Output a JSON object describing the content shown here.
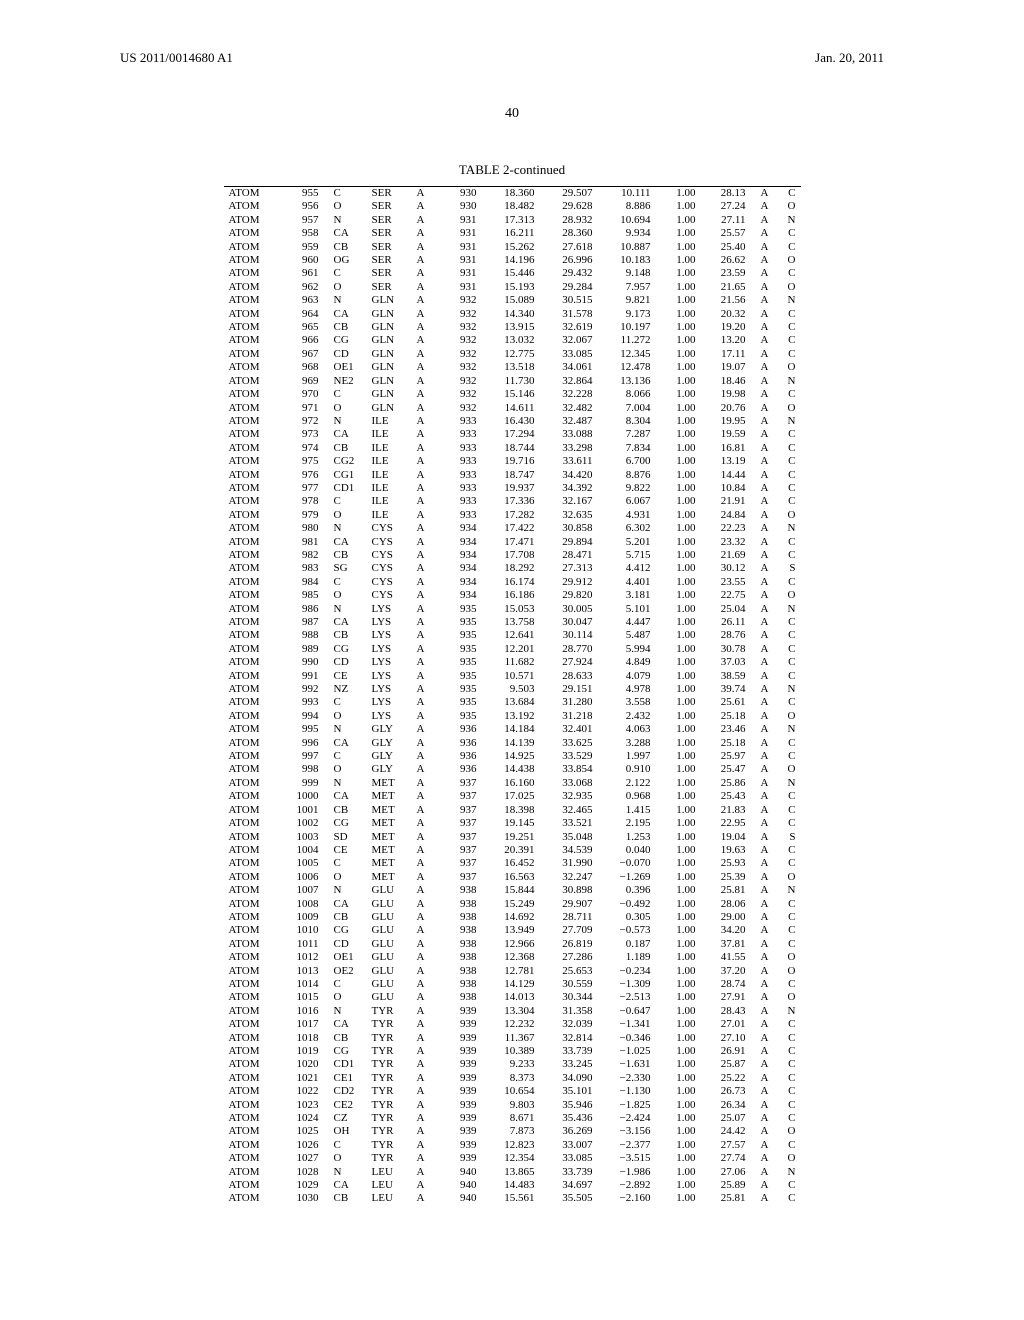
{
  "header": {
    "publication_number": "US 2011/0014680 A1",
    "publication_date": "Jan. 20, 2011"
  },
  "page_number": "40",
  "table": {
    "caption": "TABLE 2-continued",
    "font_size": 11,
    "rows": [
      [
        "ATOM",
        "955",
        "C",
        "SER",
        "A",
        "930",
        "18.360",
        "29.507",
        "10.111",
        "1.00",
        "28.13",
        "A",
        "C"
      ],
      [
        "ATOM",
        "956",
        "O",
        "SER",
        "A",
        "930",
        "18.482",
        "29.628",
        "8.886",
        "1.00",
        "27.24",
        "A",
        "O"
      ],
      [
        "ATOM",
        "957",
        "N",
        "SER",
        "A",
        "931",
        "17.313",
        "28.932",
        "10.694",
        "1.00",
        "27.11",
        "A",
        "N"
      ],
      [
        "ATOM",
        "958",
        "CA",
        "SER",
        "A",
        "931",
        "16.211",
        "28.360",
        "9.934",
        "1.00",
        "25.57",
        "A",
        "C"
      ],
      [
        "ATOM",
        "959",
        "CB",
        "SER",
        "A",
        "931",
        "15.262",
        "27.618",
        "10.887",
        "1.00",
        "25.40",
        "A",
        "C"
      ],
      [
        "ATOM",
        "960",
        "OG",
        "SER",
        "A",
        "931",
        "14.196",
        "26.996",
        "10.183",
        "1.00",
        "26.62",
        "A",
        "O"
      ],
      [
        "ATOM",
        "961",
        "C",
        "SER",
        "A",
        "931",
        "15.446",
        "29.432",
        "9.148",
        "1.00",
        "23.59",
        "A",
        "C"
      ],
      [
        "ATOM",
        "962",
        "O",
        "SER",
        "A",
        "931",
        "15.193",
        "29.284",
        "7.957",
        "1.00",
        "21.65",
        "A",
        "O"
      ],
      [
        "ATOM",
        "963",
        "N",
        "GLN",
        "A",
        "932",
        "15.089",
        "30.515",
        "9.821",
        "1.00",
        "21.56",
        "A",
        "N"
      ],
      [
        "ATOM",
        "964",
        "CA",
        "GLN",
        "A",
        "932",
        "14.340",
        "31.578",
        "9.173",
        "1.00",
        "20.32",
        "A",
        "C"
      ],
      [
        "ATOM",
        "965",
        "CB",
        "GLN",
        "A",
        "932",
        "13.915",
        "32.619",
        "10.197",
        "1.00",
        "19.20",
        "A",
        "C"
      ],
      [
        "ATOM",
        "966",
        "CG",
        "GLN",
        "A",
        "932",
        "13.032",
        "32.067",
        "11.272",
        "1.00",
        "13.20",
        "A",
        "C"
      ],
      [
        "ATOM",
        "967",
        "CD",
        "GLN",
        "A",
        "932",
        "12.775",
        "33.085",
        "12.345",
        "1.00",
        "17.11",
        "A",
        "C"
      ],
      [
        "ATOM",
        "968",
        "OE1",
        "GLN",
        "A",
        "932",
        "13.518",
        "34.061",
        "12.478",
        "1.00",
        "19.07",
        "A",
        "O"
      ],
      [
        "ATOM",
        "969",
        "NE2",
        "GLN",
        "A",
        "932",
        "11.730",
        "32.864",
        "13.136",
        "1.00",
        "18.46",
        "A",
        "N"
      ],
      [
        "ATOM",
        "970",
        "C",
        "GLN",
        "A",
        "932",
        "15.146",
        "32.228",
        "8.066",
        "1.00",
        "19.98",
        "A",
        "C"
      ],
      [
        "ATOM",
        "971",
        "O",
        "GLN",
        "A",
        "932",
        "14.611",
        "32.482",
        "7.004",
        "1.00",
        "20.76",
        "A",
        "O"
      ],
      [
        "ATOM",
        "972",
        "N",
        "ILE",
        "A",
        "933",
        "16.430",
        "32.487",
        "8.304",
        "1.00",
        "19.95",
        "A",
        "N"
      ],
      [
        "ATOM",
        "973",
        "CA",
        "ILE",
        "A",
        "933",
        "17.294",
        "33.088",
        "7.287",
        "1.00",
        "19.59",
        "A",
        "C"
      ],
      [
        "ATOM",
        "974",
        "CB",
        "ILE",
        "A",
        "933",
        "18.744",
        "33.298",
        "7.834",
        "1.00",
        "16.81",
        "A",
        "C"
      ],
      [
        "ATOM",
        "975",
        "CG2",
        "ILE",
        "A",
        "933",
        "19.716",
        "33.611",
        "6.700",
        "1.00",
        "13.19",
        "A",
        "C"
      ],
      [
        "ATOM",
        "976",
        "CG1",
        "ILE",
        "A",
        "933",
        "18.747",
        "34.420",
        "8.876",
        "1.00",
        "14.44",
        "A",
        "C"
      ],
      [
        "ATOM",
        "977",
        "CD1",
        "ILE",
        "A",
        "933",
        "19.937",
        "34.392",
        "9.822",
        "1.00",
        "10.84",
        "A",
        "C"
      ],
      [
        "ATOM",
        "978",
        "C",
        "ILE",
        "A",
        "933",
        "17.336",
        "32.167",
        "6.067",
        "1.00",
        "21.91",
        "A",
        "C"
      ],
      [
        "ATOM",
        "979",
        "O",
        "ILE",
        "A",
        "933",
        "17.282",
        "32.635",
        "4.931",
        "1.00",
        "24.84",
        "A",
        "O"
      ],
      [
        "ATOM",
        "980",
        "N",
        "CYS",
        "A",
        "934",
        "17.422",
        "30.858",
        "6.302",
        "1.00",
        "22.23",
        "A",
        "N"
      ],
      [
        "ATOM",
        "981",
        "CA",
        "CYS",
        "A",
        "934",
        "17.471",
        "29.894",
        "5.201",
        "1.00",
        "23.32",
        "A",
        "C"
      ],
      [
        "ATOM",
        "982",
        "CB",
        "CYS",
        "A",
        "934",
        "17.708",
        "28.471",
        "5.715",
        "1.00",
        "21.69",
        "A",
        "C"
      ],
      [
        "ATOM",
        "983",
        "SG",
        "CYS",
        "A",
        "934",
        "18.292",
        "27.313",
        "4.412",
        "1.00",
        "30.12",
        "A",
        "S"
      ],
      [
        "ATOM",
        "984",
        "C",
        "CYS",
        "A",
        "934",
        "16.174",
        "29.912",
        "4.401",
        "1.00",
        "23.55",
        "A",
        "C"
      ],
      [
        "ATOM",
        "985",
        "O",
        "CYS",
        "A",
        "934",
        "16.186",
        "29.820",
        "3.181",
        "1.00",
        "22.75",
        "A",
        "O"
      ],
      [
        "ATOM",
        "986",
        "N",
        "LYS",
        "A",
        "935",
        "15.053",
        "30.005",
        "5.101",
        "1.00",
        "25.04",
        "A",
        "N"
      ],
      [
        "ATOM",
        "987",
        "CA",
        "LYS",
        "A",
        "935",
        "13.758",
        "30.047",
        "4.447",
        "1.00",
        "26.11",
        "A",
        "C"
      ],
      [
        "ATOM",
        "988",
        "CB",
        "LYS",
        "A",
        "935",
        "12.641",
        "30.114",
        "5.487",
        "1.00",
        "28.76",
        "A",
        "C"
      ],
      [
        "ATOM",
        "989",
        "CG",
        "LYS",
        "A",
        "935",
        "12.201",
        "28.770",
        "5.994",
        "1.00",
        "30.78",
        "A",
        "C"
      ],
      [
        "ATOM",
        "990",
        "CD",
        "LYS",
        "A",
        "935",
        "11.682",
        "27.924",
        "4.849",
        "1.00",
        "37.03",
        "A",
        "C"
      ],
      [
        "ATOM",
        "991",
        "CE",
        "LYS",
        "A",
        "935",
        "10.571",
        "28.633",
        "4.079",
        "1.00",
        "38.59",
        "A",
        "C"
      ],
      [
        "ATOM",
        "992",
        "NZ",
        "LYS",
        "A",
        "935",
        "9.503",
        "29.151",
        "4.978",
        "1.00",
        "39.74",
        "A",
        "N"
      ],
      [
        "ATOM",
        "993",
        "C",
        "LYS",
        "A",
        "935",
        "13.684",
        "31.280",
        "3.558",
        "1.00",
        "25.61",
        "A",
        "C"
      ],
      [
        "ATOM",
        "994",
        "O",
        "LYS",
        "A",
        "935",
        "13.192",
        "31.218",
        "2.432",
        "1.00",
        "25.18",
        "A",
        "O"
      ],
      [
        "ATOM",
        "995",
        "N",
        "GLY",
        "A",
        "936",
        "14.184",
        "32.401",
        "4.063",
        "1.00",
        "23.46",
        "A",
        "N"
      ],
      [
        "ATOM",
        "996",
        "CA",
        "GLY",
        "A",
        "936",
        "14.139",
        "33.625",
        "3.288",
        "1.00",
        "25.18",
        "A",
        "C"
      ],
      [
        "ATOM",
        "997",
        "C",
        "GLY",
        "A",
        "936",
        "14.925",
        "33.529",
        "1.997",
        "1.00",
        "25.97",
        "A",
        "C"
      ],
      [
        "ATOM",
        "998",
        "O",
        "GLY",
        "A",
        "936",
        "14.438",
        "33.854",
        "0.910",
        "1.00",
        "25.47",
        "A",
        "O"
      ],
      [
        "ATOM",
        "999",
        "N",
        "MET",
        "A",
        "937",
        "16.160",
        "33.068",
        "2.122",
        "1.00",
        "25.86",
        "A",
        "N"
      ],
      [
        "ATOM",
        "1000",
        "CA",
        "MET",
        "A",
        "937",
        "17.025",
        "32.935",
        "0.968",
        "1.00",
        "25.43",
        "A",
        "C"
      ],
      [
        "ATOM",
        "1001",
        "CB",
        "MET",
        "A",
        "937",
        "18.398",
        "32.465",
        "1.415",
        "1.00",
        "21.83",
        "A",
        "C"
      ],
      [
        "ATOM",
        "1002",
        "CG",
        "MET",
        "A",
        "937",
        "19.145",
        "33.521",
        "2.195",
        "1.00",
        "22.95",
        "A",
        "C"
      ],
      [
        "ATOM",
        "1003",
        "SD",
        "MET",
        "A",
        "937",
        "19.251",
        "35.048",
        "1.253",
        "1.00",
        "19.04",
        "A",
        "S"
      ],
      [
        "ATOM",
        "1004",
        "CE",
        "MET",
        "A",
        "937",
        "20.391",
        "34.539",
        "0.040",
        "1.00",
        "19.63",
        "A",
        "C"
      ],
      [
        "ATOM",
        "1005",
        "C",
        "MET",
        "A",
        "937",
        "16.452",
        "31.990",
        "−0.070",
        "1.00",
        "25.93",
        "A",
        "C"
      ],
      [
        "ATOM",
        "1006",
        "O",
        "MET",
        "A",
        "937",
        "16.563",
        "32.247",
        "−1.269",
        "1.00",
        "25.39",
        "A",
        "O"
      ],
      [
        "ATOM",
        "1007",
        "N",
        "GLU",
        "A",
        "938",
        "15.844",
        "30.898",
        "0.396",
        "1.00",
        "25.81",
        "A",
        "N"
      ],
      [
        "ATOM",
        "1008",
        "CA",
        "GLU",
        "A",
        "938",
        "15.249",
        "29.907",
        "−0.492",
        "1.00",
        "28.06",
        "A",
        "C"
      ],
      [
        "ATOM",
        "1009",
        "CB",
        "GLU",
        "A",
        "938",
        "14.692",
        "28.711",
        "0.305",
        "1.00",
        "29.00",
        "A",
        "C"
      ],
      [
        "ATOM",
        "1010",
        "CG",
        "GLU",
        "A",
        "938",
        "13.949",
        "27.709",
        "−0.573",
        "1.00",
        "34.20",
        "A",
        "C"
      ],
      [
        "ATOM",
        "1011",
        "CD",
        "GLU",
        "A",
        "938",
        "12.966",
        "26.819",
        "0.187",
        "1.00",
        "37.81",
        "A",
        "C"
      ],
      [
        "ATOM",
        "1012",
        "OE1",
        "GLU",
        "A",
        "938",
        "12.368",
        "27.286",
        "1.189",
        "1.00",
        "41.55",
        "A",
        "O"
      ],
      [
        "ATOM",
        "1013",
        "OE2",
        "GLU",
        "A",
        "938",
        "12.781",
        "25.653",
        "−0.234",
        "1.00",
        "37.20",
        "A",
        "O"
      ],
      [
        "ATOM",
        "1014",
        "C",
        "GLU",
        "A",
        "938",
        "14.129",
        "30.559",
        "−1.309",
        "1.00",
        "28.74",
        "A",
        "C"
      ],
      [
        "ATOM",
        "1015",
        "O",
        "GLU",
        "A",
        "938",
        "14.013",
        "30.344",
        "−2.513",
        "1.00",
        "27.91",
        "A",
        "O"
      ],
      [
        "ATOM",
        "1016",
        "N",
        "TYR",
        "A",
        "939",
        "13.304",
        "31.358",
        "−0.647",
        "1.00",
        "28.43",
        "A",
        "N"
      ],
      [
        "ATOM",
        "1017",
        "CA",
        "TYR",
        "A",
        "939",
        "12.232",
        "32.039",
        "−1.341",
        "1.00",
        "27.01",
        "A",
        "C"
      ],
      [
        "ATOM",
        "1018",
        "CB",
        "TYR",
        "A",
        "939",
        "11.367",
        "32.814",
        "−0.346",
        "1.00",
        "27.10",
        "A",
        "C"
      ],
      [
        "ATOM",
        "1019",
        "CG",
        "TYR",
        "A",
        "939",
        "10.389",
        "33.739",
        "−1.025",
        "1.00",
        "26.91",
        "A",
        "C"
      ],
      [
        "ATOM",
        "1020",
        "CD1",
        "TYR",
        "A",
        "939",
        "9.233",
        "33.245",
        "−1.631",
        "1.00",
        "25.87",
        "A",
        "C"
      ],
      [
        "ATOM",
        "1021",
        "CE1",
        "TYR",
        "A",
        "939",
        "8.373",
        "34.090",
        "−2.330",
        "1.00",
        "25.22",
        "A",
        "C"
      ],
      [
        "ATOM",
        "1022",
        "CD2",
        "TYR",
        "A",
        "939",
        "10.654",
        "35.101",
        "−1.130",
        "1.00",
        "26.73",
        "A",
        "C"
      ],
      [
        "ATOM",
        "1023",
        "CE2",
        "TYR",
        "A",
        "939",
        "9.803",
        "35.946",
        "−1.825",
        "1.00",
        "26.34",
        "A",
        "C"
      ],
      [
        "ATOM",
        "1024",
        "CZ",
        "TYR",
        "A",
        "939",
        "8.671",
        "35.436",
        "−2.424",
        "1.00",
        "25.07",
        "A",
        "C"
      ],
      [
        "ATOM",
        "1025",
        "OH",
        "TYR",
        "A",
        "939",
        "7.873",
        "36.269",
        "−3.156",
        "1.00",
        "24.42",
        "A",
        "O"
      ],
      [
        "ATOM",
        "1026",
        "C",
        "TYR",
        "A",
        "939",
        "12.823",
        "33.007",
        "−2.377",
        "1.00",
        "27.57",
        "A",
        "C"
      ],
      [
        "ATOM",
        "1027",
        "O",
        "TYR",
        "A",
        "939",
        "12.354",
        "33.085",
        "−3.515",
        "1.00",
        "27.74",
        "A",
        "O"
      ],
      [
        "ATOM",
        "1028",
        "N",
        "LEU",
        "A",
        "940",
        "13.865",
        "33.739",
        "−1.986",
        "1.00",
        "27.06",
        "A",
        "N"
      ],
      [
        "ATOM",
        "1029",
        "CA",
        "LEU",
        "A",
        "940",
        "14.483",
        "34.697",
        "−2.892",
        "1.00",
        "25.89",
        "A",
        "C"
      ],
      [
        "ATOM",
        "1030",
        "CB",
        "LEU",
        "A",
        "940",
        "15.561",
        "35.505",
        "−2.160",
        "1.00",
        "25.81",
        "A",
        "C"
      ]
    ]
  }
}
